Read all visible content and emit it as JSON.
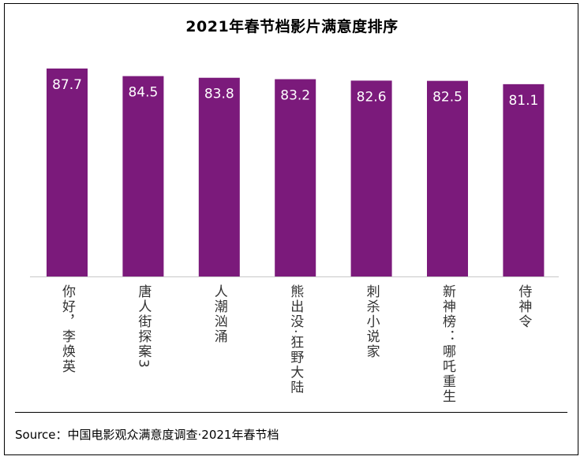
{
  "chart_data": {
    "type": "bar",
    "title": "2021年春节档影片满意度排序",
    "categories": [
      "你好，李焕英",
      "唐人街探案3",
      "人潮汹涌",
      "熊出没·狂野大陆",
      "刺杀小说家",
      "新神榜：哪吒重生",
      "侍神令"
    ],
    "values": [
      87.7,
      84.5,
      83.8,
      83.2,
      82.6,
      82.5,
      81.1
    ],
    "xlabel": "",
    "ylabel": "",
    "ylim": [
      0,
      87.7
    ],
    "grid": false,
    "legend": "none",
    "bar_color": "#7B1A7B",
    "label_color": "#FFFFFF"
  },
  "source": "Source：中国电影观众满意度调查·2021年春节档"
}
